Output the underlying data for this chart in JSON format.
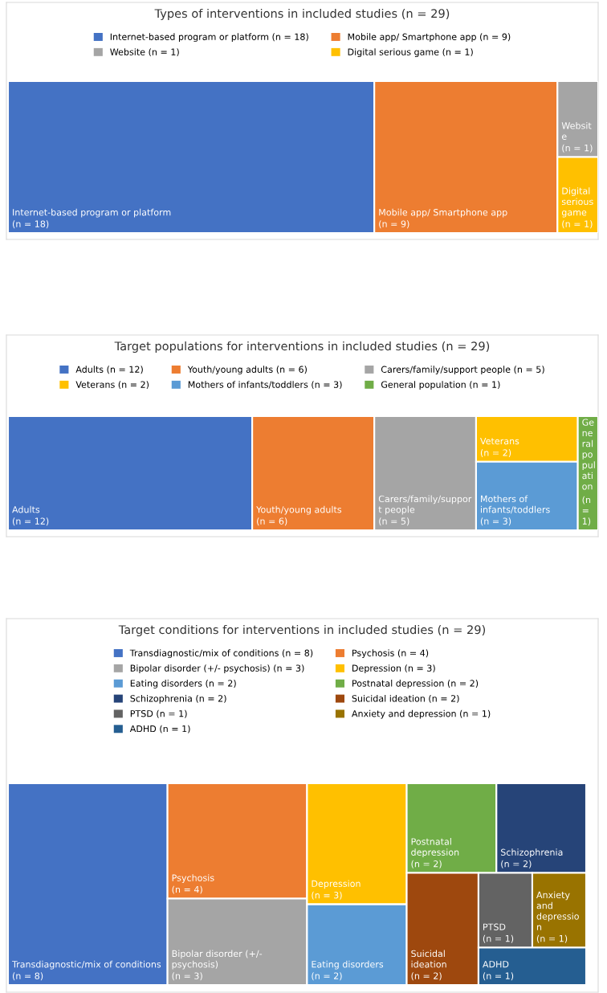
{
  "chart_data": [
    {
      "type": "other",
      "title": "Types of interventions in included studies (n = 29)",
      "categories": [
        "Internet-based program or platform",
        "Mobile app/ Smartphone app",
        "Website",
        "Digital serious game"
      ],
      "values": [
        18,
        9,
        1,
        1
      ],
      "value_labels": [
        "(n = 18)",
        "(n = 9)",
        "(n = 1)",
        "(n = 1)"
      ],
      "colors": [
        "#4472c4",
        "#ed7d31",
        "#a5a5a5",
        "#ffc000"
      ]
    },
    {
      "type": "other",
      "title": "Target populations for interventions in included studies (n = 29)",
      "categories": [
        "Adults",
        "Youth/young adults",
        "Carers/family/support people",
        "Veterans",
        "Mothers of infants/toddlers",
        "General population"
      ],
      "values": [
        12,
        6,
        5,
        2,
        3,
        1
      ],
      "value_labels": [
        "(n = 12)",
        "(n = 6)",
        "(n = 5)",
        "(n = 2)",
        "(n = 3)",
        "(n = 1)"
      ],
      "colors": [
        "#4472c4",
        "#ed7d31",
        "#a5a5a5",
        "#ffc000",
        "#5b9bd5",
        "#70ad47"
      ]
    },
    {
      "type": "other",
      "title": "Target conditions for interventions in included studies (n = 29)",
      "categories": [
        "Transdiagnostic/mix of conditions",
        "Psychosis",
        "Bipolar disorder (+/- psychosis)",
        "Depression",
        "Eating disorders",
        "Postnatal depression",
        "Schizophrenia",
        "Suicidal ideation",
        "PTSD",
        "Anxiety and depression",
        "ADHD"
      ],
      "values": [
        8,
        4,
        3,
        3,
        2,
        2,
        2,
        2,
        1,
        1,
        1
      ],
      "value_labels": [
        "(n = 8)",
        "(n = 4)",
        "(n = 3)",
        "(n = 3)",
        "(n = 2)",
        "(n = 2)",
        "(n = 2)",
        "(n = 2)",
        "(n = 1)",
        "(n = 1)",
        "(n = 1)"
      ],
      "colors": [
        "#4472c4",
        "#ed7d31",
        "#a5a5a5",
        "#ffc000",
        "#5b9bd5",
        "#70ad47",
        "#264478",
        "#9e480e",
        "#636363",
        "#997300",
        "#255e91"
      ]
    }
  ]
}
